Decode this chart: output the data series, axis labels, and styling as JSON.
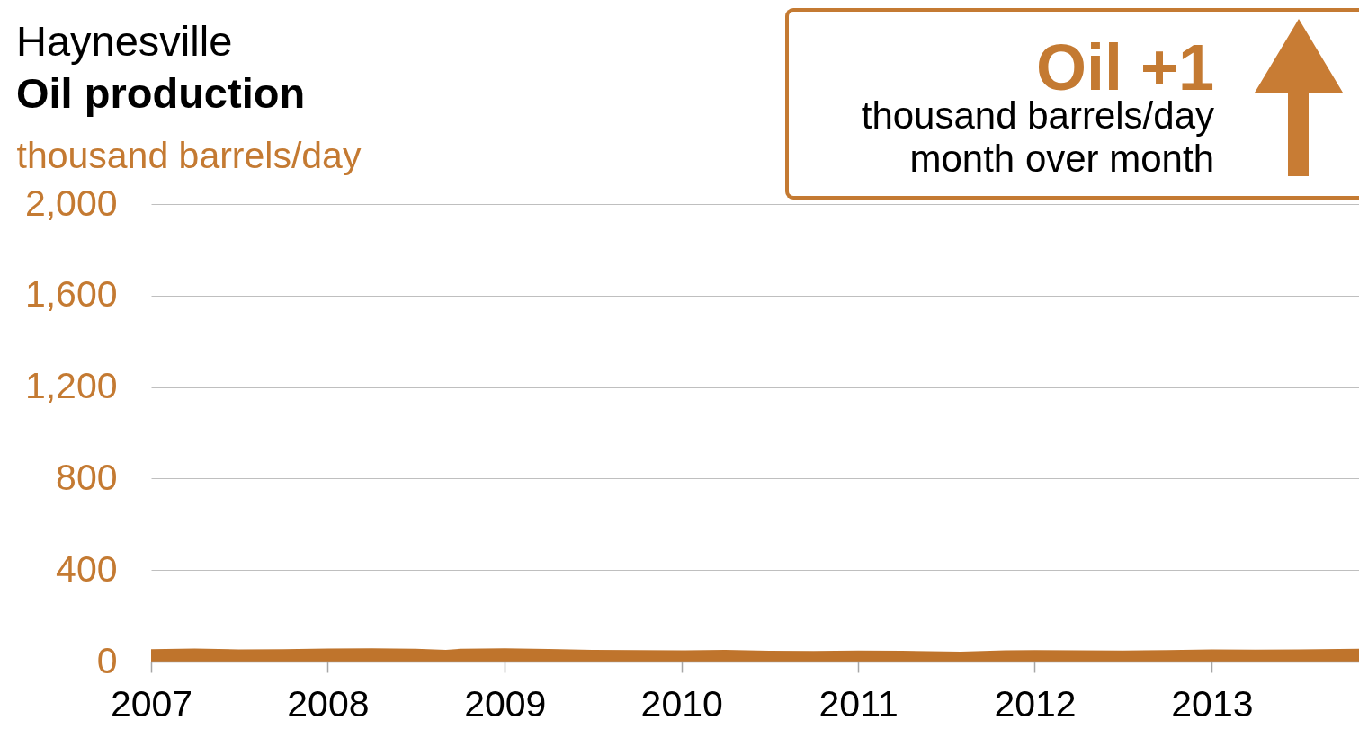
{
  "chart_data": {
    "type": "area",
    "title": "Haynesville",
    "subtitle": "Oil production",
    "ylabel": "thousand barrels/day",
    "annotations": [
      "Oil +1",
      "thousand barrels/day",
      "month over month"
    ],
    "x": [
      "2007-01",
      "2007-04",
      "2007-07",
      "2007-10",
      "2008-01",
      "2008-04",
      "2008-07",
      "2008-09",
      "2008-10",
      "2009-01",
      "2009-04",
      "2009-07",
      "2009-10",
      "2010-01",
      "2010-04",
      "2010-07",
      "2010-10",
      "2011-01",
      "2011-04",
      "2011-08",
      "2011-11",
      "2012-01",
      "2012-04",
      "2012-07",
      "2012-10",
      "2013-01",
      "2013-04",
      "2013-07",
      "2013-11"
    ],
    "values": [
      54,
      57,
      53,
      54,
      57,
      58,
      56,
      51,
      56,
      58,
      55,
      51,
      50,
      49,
      51,
      47,
      46,
      48,
      47,
      43,
      49,
      50,
      49,
      48,
      50,
      53,
      52,
      53,
      56
    ],
    "color": "#bf742c",
    "xlim": [
      "2007-01",
      "2013-11"
    ],
    "xticks": [
      "2007",
      "2008",
      "2009",
      "2010",
      "2011",
      "2012",
      "2013"
    ],
    "ylim": [
      0,
      2000
    ],
    "yticks": [
      0,
      400,
      800,
      {
        "value": 1200,
        "label": "1,200"
      },
      {
        "value": 1600,
        "label": "1,600"
      },
      {
        "value": 2000,
        "label": "2,000"
      }
    ],
    "grid": "y"
  }
}
